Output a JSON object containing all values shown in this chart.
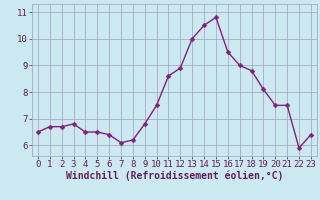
{
  "x": [
    0,
    1,
    2,
    3,
    4,
    5,
    6,
    7,
    8,
    9,
    10,
    11,
    12,
    13,
    14,
    15,
    16,
    17,
    18,
    19,
    20,
    21,
    22,
    23
  ],
  "y": [
    6.5,
    6.7,
    6.7,
    6.8,
    6.5,
    6.5,
    6.4,
    6.1,
    6.2,
    6.8,
    7.5,
    8.6,
    8.9,
    10.0,
    10.5,
    10.8,
    9.5,
    9.0,
    8.8,
    8.1,
    7.5,
    7.5,
    5.9,
    6.4
  ],
  "bg_color": "#cce8f0",
  "line_color": "#802080",
  "marker_color": "#802080",
  "grid_color": "#a0a0c0",
  "xlabel": "Windchill (Refroidissement éolien,°C)",
  "ylim": [
    5.6,
    11.3
  ],
  "xlim": [
    -0.5,
    23.5
  ],
  "yticks": [
    6,
    7,
    8,
    9,
    10,
    11
  ],
  "xticks": [
    0,
    1,
    2,
    3,
    4,
    5,
    6,
    7,
    8,
    9,
    10,
    11,
    12,
    13,
    14,
    15,
    16,
    17,
    18,
    19,
    20,
    21,
    22,
    23
  ],
  "tick_label_size": 6.5,
  "xlabel_size": 7,
  "line_width": 1.0,
  "marker_size": 2.5
}
